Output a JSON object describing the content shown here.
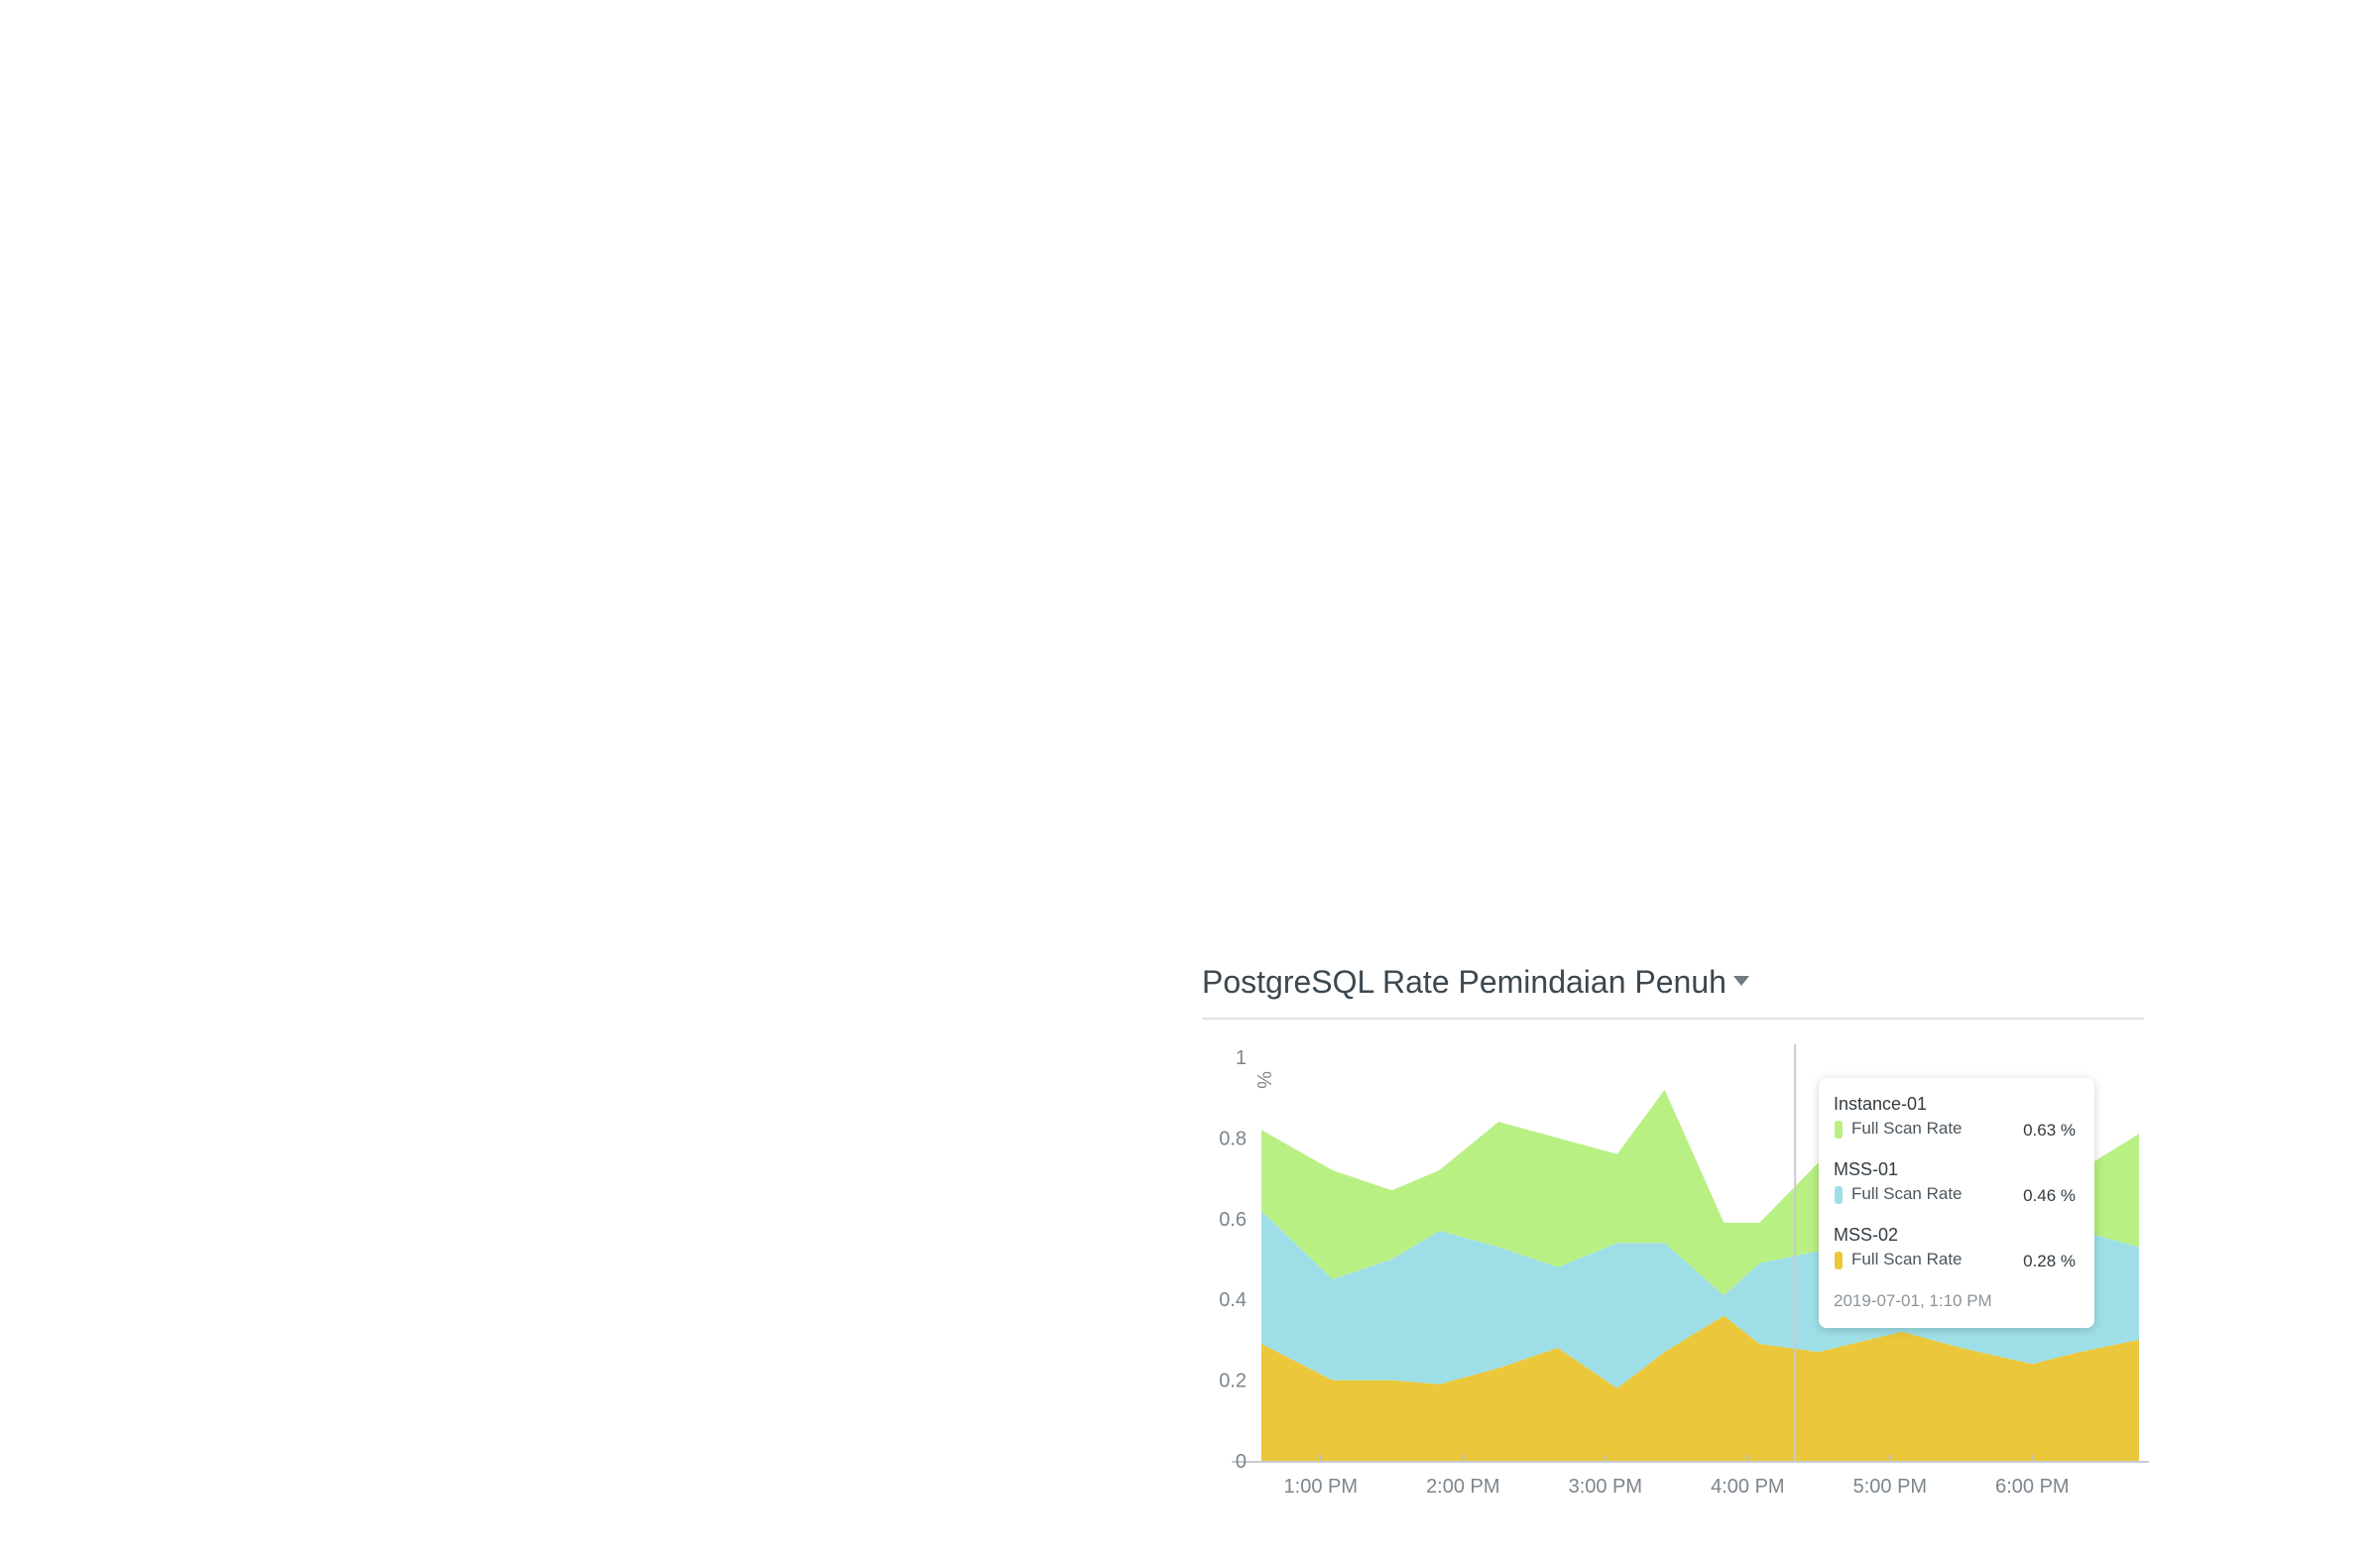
{
  "widget": {
    "title": "PostgreSQL Rate Pemindaian Penuh"
  },
  "chart_data": {
    "type": "area",
    "stacked": true,
    "unit": "%",
    "ylim": [
      0,
      1
    ],
    "yticks": [
      0,
      0.2,
      0.4,
      0.6,
      0.8,
      1
    ],
    "ytick_labels": [
      "0",
      "0.2",
      "0.4",
      "0.6",
      "0.8",
      "1"
    ],
    "xlim": [
      "12:35 PM",
      "6:45 PM"
    ],
    "xticks": [
      "1:00 PM",
      "2:00 PM",
      "3:00 PM",
      "4:00 PM",
      "5:00 PM",
      "6:00 PM"
    ],
    "x": [
      "12:35 PM",
      "1:05 PM",
      "1:30 PM",
      "1:50 PM",
      "2:15 PM",
      "2:40 PM",
      "3:05 PM",
      "3:25 PM",
      "3:50 PM",
      "4:05 PM",
      "4:30 PM",
      "5:05 PM",
      "5:30 PM",
      "6:00 PM",
      "6:20 PM",
      "6:45 PM"
    ],
    "series": [
      {
        "name": "MSS-02",
        "metric": "Full Scan Rate",
        "color": "#ebc73c",
        "values": [
          0.29,
          0.2,
          0.2,
          0.19,
          0.23,
          0.28,
          0.18,
          0.27,
          0.36,
          0.29,
          0.27,
          0.32,
          0.28,
          0.24,
          0.27,
          0.3
        ]
      },
      {
        "name": "MSS-01",
        "metric": "Full Scan Rate",
        "color": "#9edfe7",
        "values": [
          0.33,
          0.25,
          0.3,
          0.38,
          0.3,
          0.2,
          0.36,
          0.27,
          0.05,
          0.2,
          0.25,
          0.16,
          0.24,
          0.34,
          0.3,
          0.23
        ]
      },
      {
        "name": "Instance-01",
        "metric": "Full Scan Rate",
        "color": "#b9f084",
        "values": [
          0.2,
          0.27,
          0.17,
          0.15,
          0.31,
          0.32,
          0.22,
          0.38,
          0.18,
          0.1,
          0.22,
          0.27,
          0.12,
          0.13,
          0.15,
          0.28
        ]
      }
    ],
    "cursor_x": "4:20 PM"
  },
  "tooltip": {
    "items": [
      {
        "name": "Instance-01",
        "metric": "Full Scan Rate",
        "value": "0.63 %",
        "color": "#b9f084"
      },
      {
        "name": "MSS-01",
        "metric": "Full Scan Rate",
        "value": "0.46 %",
        "color": "#9edfe7"
      },
      {
        "name": "MSS-02",
        "metric": "Full Scan Rate",
        "value": "0.28 %",
        "color": "#ebc73c"
      }
    ],
    "timestamp": "2019-07-01, 1:10 PM"
  }
}
